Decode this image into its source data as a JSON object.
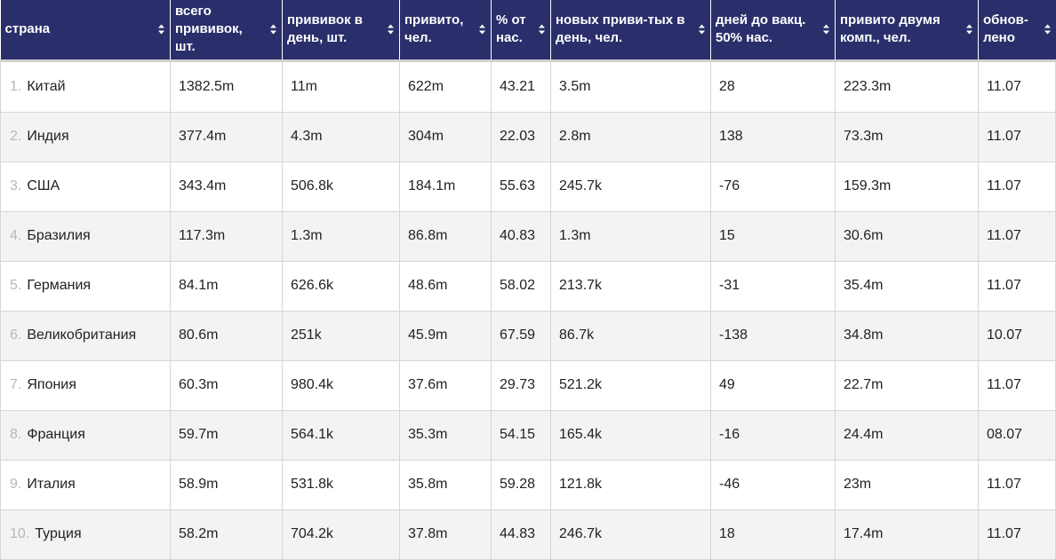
{
  "table": {
    "columns": [
      {
        "label": "страна",
        "name": "col-country"
      },
      {
        "label": "всего прививок, шт.",
        "name": "col-total-vaccinations"
      },
      {
        "label": "прививок в день, шт.",
        "name": "col-daily-vaccinations"
      },
      {
        "label": "привито, чел.",
        "name": "col-people-vaccinated"
      },
      {
        "label": "% от нас.",
        "name": "col-percent-population"
      },
      {
        "label": "новых приви-тых в день, чел.",
        "name": "col-new-vaccinated-daily"
      },
      {
        "label": "дней до вакц. 50% нас.",
        "name": "col-days-to-50"
      },
      {
        "label": "привито двумя комп., чел.",
        "name": "col-fully-vaccinated"
      },
      {
        "label": "обнов-лено",
        "name": "col-updated"
      }
    ],
    "rows": [
      {
        "rank": "1.",
        "country": "Китай",
        "total": "1382.5m",
        "daily": "11m",
        "vaccinated": "622m",
        "percent": "43.21",
        "new_daily": "3.5m",
        "days": "28",
        "full": "223.3m",
        "updated": "11.07"
      },
      {
        "rank": "2.",
        "country": "Индия",
        "total": "377.4m",
        "daily": "4.3m",
        "vaccinated": "304m",
        "percent": "22.03",
        "new_daily": "2.8m",
        "days": "138",
        "full": "73.3m",
        "updated": "11.07"
      },
      {
        "rank": "3.",
        "country": "США",
        "total": "343.4m",
        "daily": "506.8k",
        "vaccinated": "184.1m",
        "percent": "55.63",
        "new_daily": "245.7k",
        "days": "-76",
        "full": "159.3m",
        "updated": "11.07"
      },
      {
        "rank": "4.",
        "country": "Бразилия",
        "total": "117.3m",
        "daily": "1.3m",
        "vaccinated": "86.8m",
        "percent": "40.83",
        "new_daily": "1.3m",
        "days": "15",
        "full": "30.6m",
        "updated": "11.07"
      },
      {
        "rank": "5.",
        "country": "Германия",
        "total": "84.1m",
        "daily": "626.6k",
        "vaccinated": "48.6m",
        "percent": "58.02",
        "new_daily": "213.7k",
        "days": "-31",
        "full": "35.4m",
        "updated": "11.07"
      },
      {
        "rank": "6.",
        "country": "Великобритания",
        "total": "80.6m",
        "daily": "251k",
        "vaccinated": "45.9m",
        "percent": "67.59",
        "new_daily": "86.7k",
        "days": "-138",
        "full": "34.8m",
        "updated": "10.07"
      },
      {
        "rank": "7.",
        "country": "Япония",
        "total": "60.3m",
        "daily": "980.4k",
        "vaccinated": "37.6m",
        "percent": "29.73",
        "new_daily": "521.2k",
        "days": "49",
        "full": "22.7m",
        "updated": "11.07"
      },
      {
        "rank": "8.",
        "country": "Франция",
        "total": "59.7m",
        "daily": "564.1k",
        "vaccinated": "35.3m",
        "percent": "54.15",
        "new_daily": "165.4k",
        "days": "-16",
        "full": "24.4m",
        "updated": "08.07"
      },
      {
        "rank": "9.",
        "country": "Италия",
        "total": "58.9m",
        "daily": "531.8k",
        "vaccinated": "35.8m",
        "percent": "59.28",
        "new_daily": "121.8k",
        "days": "-46",
        "full": "23m",
        "updated": "11.07"
      },
      {
        "rank": "10.",
        "country": "Турция",
        "total": "58.2m",
        "daily": "704.2k",
        "vaccinated": "37.8m",
        "percent": "44.83",
        "new_daily": "246.7k",
        "days": "18",
        "full": "17.4m",
        "updated": "11.07"
      }
    ]
  },
  "colors": {
    "header_bg": "#2a2f6b",
    "row_alt_bg": "#f3f3f3",
    "rank_text": "#b8b8b8"
  },
  "icons": {
    "sort": "sort-arrows-icon"
  }
}
